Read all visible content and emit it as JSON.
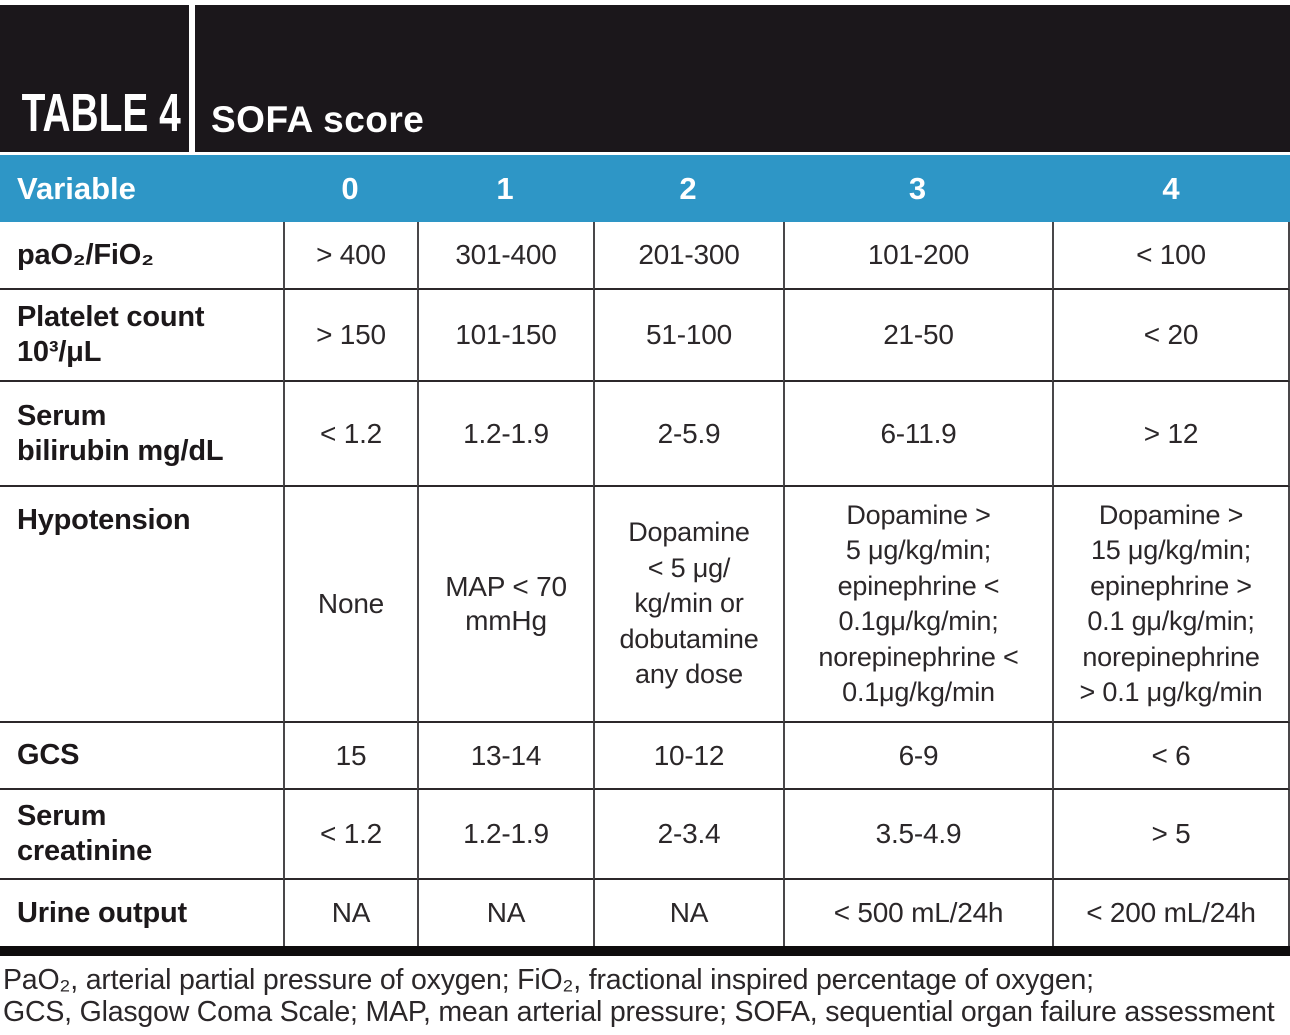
{
  "banner": {
    "label": "TABLE 4",
    "title": "SOFA score"
  },
  "colors": {
    "banner_bg": "#1b171b",
    "header_blue": "#2e96c6",
    "body_text": "#2b2729",
    "thick_rule": "#0e0c0d"
  },
  "table": {
    "columns": [
      "Variable",
      "0",
      "1",
      "2",
      "3",
      "4"
    ],
    "rows": [
      {
        "label": "paO₂/FiO₂",
        "values": [
          "> 400",
          "301-400",
          "201-300",
          "101-200",
          "< 100"
        ]
      },
      {
        "label": "Platelet count\n10³/μL",
        "values": [
          "> 150",
          "101-150",
          "51-100",
          "21-50",
          "< 20"
        ]
      },
      {
        "label": "Serum\nbilirubin mg/dL",
        "values": [
          "< 1.2",
          "1.2-1.9",
          "2-5.9",
          "6-11.9",
          "> 12"
        ]
      },
      {
        "label": "Hypotension",
        "values": [
          "None",
          "MAP < 70\nmmHg",
          "Dopamine\n< 5 μg/\nkg/min or\ndobutamine\nany dose",
          "Dopamine >\n5 μg/kg/min;\nepinephrine <\n0.1gμ/kg/min;\nnorepinephrine <\n0.1μg/kg/min",
          "Dopamine >\n15 μg/kg/min;\nepinephrine >\n0.1 gμ/kg/min;\nnorepinephrine\n> 0.1 μg/kg/min"
        ]
      },
      {
        "label": "GCS",
        "values": [
          "15",
          "13-14",
          "10-12",
          "6-9",
          "< 6"
        ]
      },
      {
        "label": "Serum\ncreatinine",
        "values": [
          "< 1.2",
          "1.2-1.9",
          "2-3.4",
          "3.5-4.9",
          "> 5"
        ]
      },
      {
        "label": "Urine output",
        "values": [
          "NA",
          "NA",
          "NA",
          "< 500 mL/24h",
          "< 200 mL/24h"
        ]
      }
    ]
  },
  "footnote": {
    "line1": "PaO₂, arterial partial pressure of oxygen; FiO₂, fractional inspired percentage of oxygen;",
    "line2": "GCS, Glasgow Coma Scale; MAP, mean arterial pressure; SOFA, sequential organ failure assessment"
  }
}
